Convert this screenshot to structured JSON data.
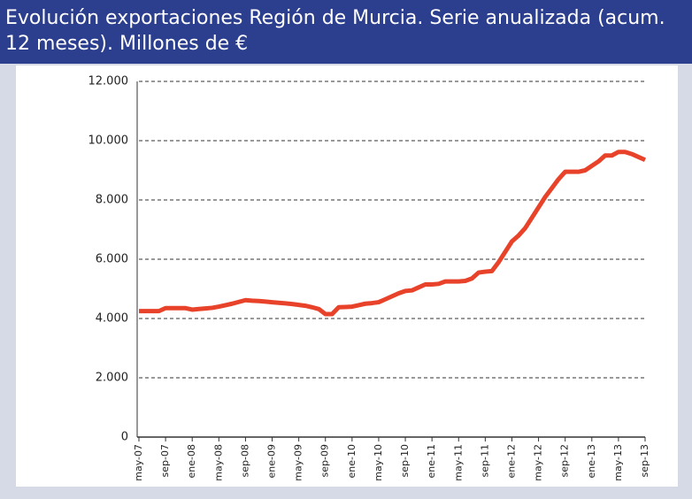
{
  "chart_data": {
    "type": "line",
    "title": "Evolución exportaciones Región de Murcia. Serie anualizada (acum. 12 meses). Millones de €",
    "categories": [
      "may-07",
      null,
      null,
      null,
      "sep-07",
      null,
      null,
      null,
      "ene-08",
      null,
      null,
      null,
      "may-08",
      null,
      null,
      null,
      "sep-08",
      null,
      null,
      null,
      "ene-09",
      null,
      null,
      null,
      "may-09",
      null,
      null,
      null,
      "sep-09",
      null,
      null,
      null,
      "ene-10",
      null,
      null,
      null,
      "may-10",
      null,
      null,
      null,
      "sep-10",
      null,
      null,
      null,
      "ene-11",
      null,
      null,
      null,
      "may-11",
      null,
      null,
      null,
      "sep-11",
      null,
      null,
      null,
      "ene-12",
      null,
      null,
      null,
      "may-12",
      null,
      null,
      null,
      "sep-12",
      null,
      null,
      null,
      "ene-13",
      null,
      null,
      null,
      "may-13",
      null,
      null,
      null,
      "sep-13"
    ],
    "values": [
      4250,
      4250,
      4250,
      4250,
      4350,
      4350,
      4350,
      4350,
      4300,
      4320,
      4340,
      4360,
      4400,
      4450,
      4500,
      4560,
      4620,
      4600,
      4590,
      4570,
      4550,
      4530,
      4510,
      4490,
      4460,
      4430,
      4380,
      4320,
      4150,
      4150,
      4380,
      4390,
      4400,
      4450,
      4500,
      4520,
      4550,
      4650,
      4750,
      4850,
      4930,
      4950,
      5050,
      5150,
      5150,
      5170,
      5250,
      5250,
      5250,
      5270,
      5350,
      5550,
      5580,
      5600,
      5900,
      6250,
      6600,
      6800,
      7050,
      7400,
      7750,
      8100,
      8400,
      8700,
      8950,
      8950,
      8950,
      9000,
      9150,
      9300,
      9500,
      9500,
      9620,
      9620,
      9550,
      9450,
      9350
    ],
    "color": "#e8432a",
    "ylim": [
      0,
      12000
    ],
    "yticks": [
      0,
      {
        "value": 2000,
        "label": "2.000"
      },
      {
        "value": 4000,
        "label": "4.000"
      },
      {
        "value": 6000,
        "label": "6.000"
      },
      {
        "value": 8000,
        "label": "8.000"
      },
      {
        "value": 10000,
        "label": "10.000"
      },
      {
        "value": 12000,
        "label": "12.000"
      }
    ],
    "grid": true
  }
}
